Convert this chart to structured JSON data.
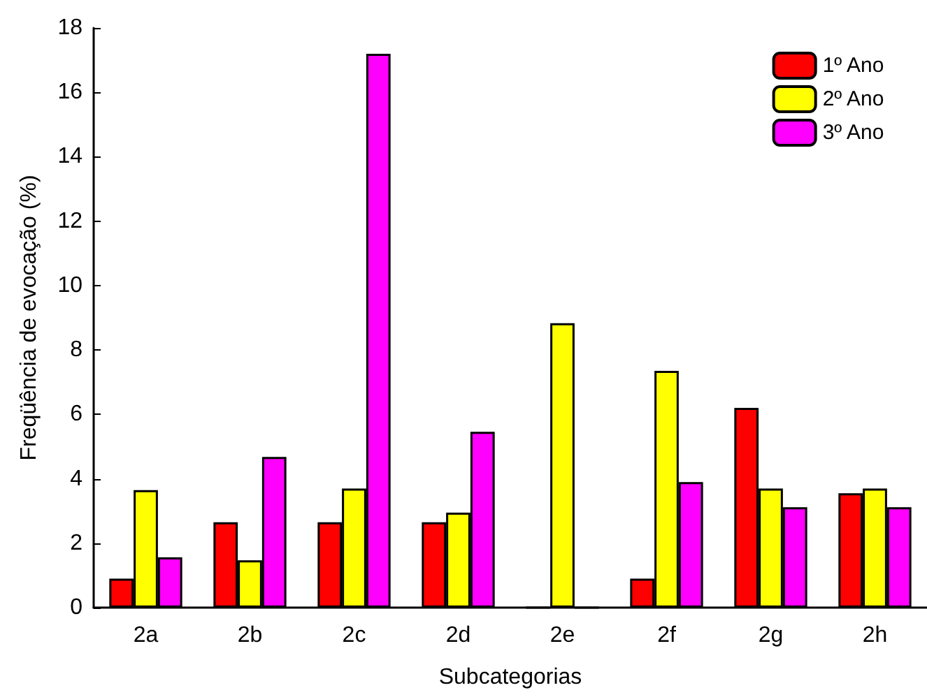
{
  "chart_data": {
    "type": "bar",
    "xlabel": "Subcategorias",
    "ylabel": "Freqüência de evocação (%)",
    "categories": [
      "2a",
      "2b",
      "2c",
      "2d",
      "2e",
      "2f",
      "2g",
      "2h"
    ],
    "series": [
      {
        "name": "1º Ano",
        "color": "#ff0000",
        "values": [
          0.9,
          2.65,
          2.65,
          2.65,
          0,
          0.9,
          6.2,
          3.55
        ]
      },
      {
        "name": "2º Ano",
        "color": "#ffff00",
        "values": [
          3.65,
          1.47,
          3.7,
          2.95,
          8.83,
          7.35,
          3.7,
          3.7
        ]
      },
      {
        "name": "3º Ano",
        "color": "#ff00ff",
        "values": [
          1.56,
          4.68,
          17.2,
          5.46,
          0,
          3.9,
          3.12,
          3.12
        ]
      }
    ],
    "ylim": [
      0,
      18
    ],
    "yticks": [
      0,
      2,
      4,
      6,
      8,
      10,
      12,
      14,
      16,
      18
    ],
    "grid": false,
    "legend": "top right"
  }
}
